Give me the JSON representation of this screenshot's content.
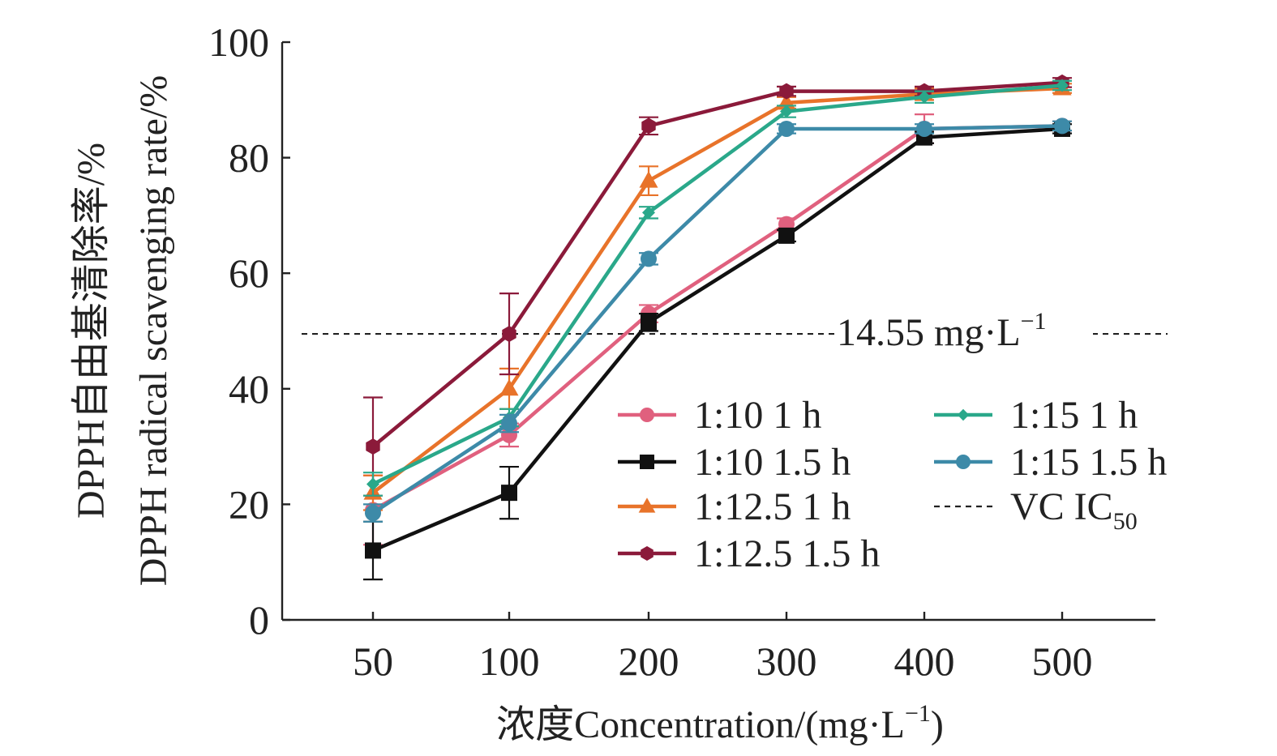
{
  "chart_data": {
    "type": "line",
    "title": "",
    "xlabel": "浓度Concentration/(mg·L",
    "xlabel_sup": "−1",
    "xlabel_tail": ")",
    "ylabel_line1": "DPPH自由基清除率/%",
    "ylabel_line2": "DPPH radical scavenging rate/%",
    "categories": [
      "50",
      "100",
      "200",
      "300",
      "400",
      "500"
    ],
    "ylim": [
      0,
      100
    ],
    "yticks": [
      "0",
      "20",
      "40",
      "60",
      "80",
      "100"
    ],
    "grid": false,
    "legend_position": "lower-right",
    "series": [
      {
        "name": "1:10 1 h",
        "marker": "circle",
        "color": "#e0607e",
        "values": [
          19,
          32,
          53,
          68.5,
          85,
          85.5
        ],
        "errors": [
          6,
          2,
          1.5,
          1,
          2.5,
          0.8
        ]
      },
      {
        "name": "1:10 1.5 h",
        "marker": "square",
        "color": "#111111",
        "values": [
          12,
          22,
          51.5,
          66.5,
          83.5,
          85
        ],
        "errors": [
          5,
          4.5,
          1.5,
          1,
          1,
          0.8
        ]
      },
      {
        "name": "1:12.5 1 h",
        "marker": "triangle",
        "color": "#e8732a",
        "values": [
          22,
          40,
          76,
          89.5,
          91,
          92
        ],
        "errors": [
          3,
          3.5,
          2.5,
          1,
          1,
          0.8
        ]
      },
      {
        "name": "1:12.5 1.5 h",
        "marker": "hexagon",
        "color": "#8b1a3a",
        "values": [
          30,
          49.5,
          85.5,
          91.5,
          91.5,
          93
        ],
        "errors": [
          8.5,
          7,
          1.5,
          0.8,
          0.8,
          0.8
        ]
      },
      {
        "name": "1:15 1 h",
        "marker": "diamond",
        "color": "#2aa88a",
        "values": [
          23.5,
          35,
          70.5,
          88,
          90.5,
          92.5
        ],
        "errors": [
          2,
          1.5,
          1,
          1,
          1,
          0.8
        ]
      },
      {
        "name": "1:15 1.5 h",
        "marker": "circle",
        "color": "#3d8aa8",
        "values": [
          18.5,
          34,
          62.5,
          85,
          85,
          85.5
        ],
        "errors": [
          1.5,
          1.5,
          1,
          0.8,
          0.8,
          0.8
        ]
      }
    ],
    "reference_line": {
      "name": "VC IC",
      "name_sub": "50",
      "y": 49.5,
      "label": "14.55 mg·L",
      "label_sup": "−1"
    }
  }
}
